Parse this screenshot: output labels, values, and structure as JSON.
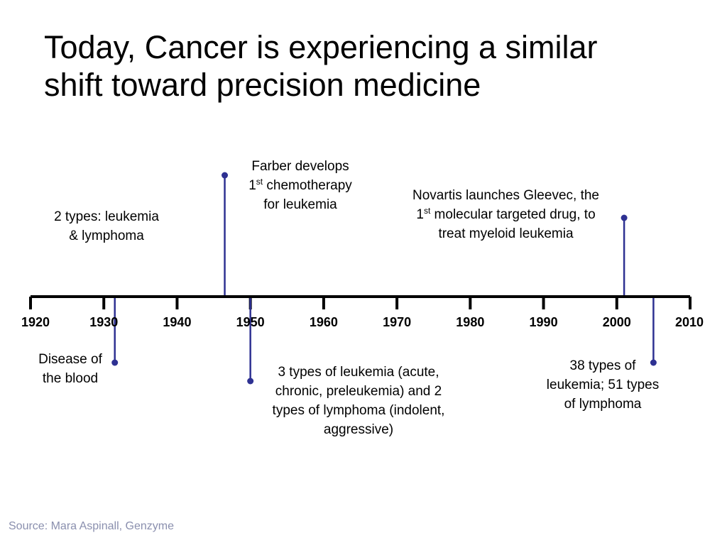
{
  "title": {
    "line1": "Today, Cancer is experiencing a similar",
    "line2": "shift toward precision medicine"
  },
  "timeline": {
    "years": [
      "1920",
      "1930",
      "1940",
      "1950",
      "1960",
      "1970",
      "1980",
      "1990",
      "2000",
      "2010"
    ],
    "range": [
      1920,
      2010
    ],
    "colors": {
      "axis": "#000000",
      "marker": "#2e3192"
    },
    "events": [
      {
        "id": "disease-of-blood",
        "year": 1931.5,
        "direction": "below",
        "lines": [
          "Disease of",
          "the blood"
        ]
      },
      {
        "id": "two-types",
        "year": null,
        "direction": "none",
        "lines": [
          "2 types: leukemia",
          "& lymphoma"
        ]
      },
      {
        "id": "farber",
        "year": 1946.5,
        "direction": "above",
        "lines": [
          "Farber develops",
          "1|st| chemotherapy",
          "for leukemia"
        ]
      },
      {
        "id": "three-types",
        "year": 1950,
        "direction": "below",
        "lines": [
          "3 types of leukemia (acute,",
          "chronic, preleukemia) and 2",
          "types of lymphoma (indolent,",
          "aggressive)"
        ]
      },
      {
        "id": "gleevec",
        "year": 2001,
        "direction": "above",
        "lines": [
          "Novartis launches Gleevec, the",
          "1|st| molecular targeted drug, to",
          "treat myeloid leukemia"
        ]
      },
      {
        "id": "thirty-eight-types",
        "year": 2005,
        "direction": "below",
        "lines": [
          "38 types of",
          "leukemia; 51 types",
          "of lymphoma"
        ]
      }
    ]
  },
  "source": "Source: Mara Aspinall, Genzyme"
}
